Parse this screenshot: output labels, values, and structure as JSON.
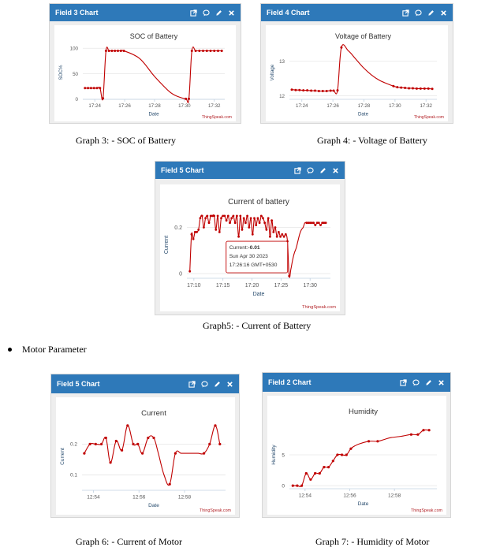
{
  "colors": {
    "header": "#2e79b9",
    "series": "#c00000"
  },
  "widgets": [
    {
      "header": "Field 3 Chart",
      "caption": "Graph 3: - SOC of Battery",
      "chart_data": {
        "type": "line",
        "title": "SOC of Battery",
        "ylabel": "SOC%",
        "xlabel": "Date",
        "credit": "ThingSpeak.com",
        "xlim": [
          23.2,
          32.7
        ],
        "ylim": [
          0,
          105
        ],
        "yticks": [
          0,
          50,
          100
        ],
        "ytick_labels": [
          "0",
          "50",
          "100"
        ],
        "xticks": [
          24,
          26,
          28,
          30,
          32
        ],
        "xtick_labels": [
          "17:24",
          "17:26",
          "17:28",
          "17:30",
          "17:32"
        ],
        "grid": true,
        "series": [
          {
            "x": [
              23.35,
              23.55,
              23.75,
              23.95,
              24.15,
              24.35,
              24.55,
              24.75,
              24.95,
              25.15,
              25.35,
              25.55,
              25.75,
              25.95,
              27.0,
              28.0,
              29.0,
              29.6,
              30.1,
              30.3,
              30.5,
              30.75,
              31.0,
              31.25,
              31.5,
              31.75,
              32.0,
              32.25,
              32.5
            ],
            "y": [
              22,
              22,
              22,
              22,
              22,
              22,
              2,
              95,
              95,
              95,
              95,
              95,
              95,
              95,
              80,
              45,
              15,
              5,
              1,
              1,
              95,
              95,
              95,
              95,
              95,
              95,
              95,
              95,
              95
            ],
            "markers": [
              true,
              true,
              true,
              true,
              true,
              true,
              true,
              true,
              true,
              true,
              true,
              true,
              true,
              true,
              false,
              false,
              false,
              false,
              true,
              true,
              true,
              true,
              true,
              true,
              true,
              true,
              true,
              true,
              true
            ]
          }
        ]
      }
    },
    {
      "header": "Field 4 Chart",
      "caption": "Graph 4: - Voltage of Battery",
      "chart_data": {
        "type": "line",
        "title": "Voltage of Battery",
        "ylabel": "Voltage",
        "xlabel": "Date",
        "credit": "ThingSpeak.com",
        "xlim": [
          23.2,
          32.7
        ],
        "ylim": [
          11.9,
          13.45
        ],
        "yticks": [
          12,
          13
        ],
        "ytick_labels": [
          "12",
          "13"
        ],
        "xticks": [
          24,
          26,
          28,
          30,
          32
        ],
        "xtick_labels": [
          "17:24",
          "17:26",
          "17:28",
          "17:30",
          "17:32"
        ],
        "grid": true,
        "series": [
          {
            "x": [
              23.35,
              23.6,
              23.85,
              24.1,
              24.35,
              24.6,
              24.85,
              25.1,
              25.35,
              25.6,
              25.85,
              26.05,
              26.3,
              26.55,
              27.0,
              27.5,
              28.0,
              28.5,
              29.0,
              29.5,
              29.9,
              30.15,
              30.4,
              30.65,
              30.9,
              31.15,
              31.4,
              31.65,
              31.9,
              32.15,
              32.4
            ],
            "y": [
              12.18,
              12.17,
              12.17,
              12.16,
              12.16,
              12.15,
              12.15,
              12.14,
              12.14,
              12.14,
              12.15,
              12.15,
              12.16,
              13.4,
              13.3,
              13.05,
              12.8,
              12.6,
              12.45,
              12.35,
              12.28,
              12.25,
              12.24,
              12.23,
              12.22,
              12.22,
              12.21,
              12.21,
              12.21,
              12.21,
              12.2
            ],
            "markers": [
              true,
              true,
              true,
              true,
              true,
              true,
              true,
              true,
              true,
              true,
              true,
              true,
              true,
              true,
              false,
              false,
              false,
              false,
              false,
              false,
              true,
              true,
              true,
              true,
              true,
              true,
              true,
              true,
              true,
              true,
              true
            ]
          }
        ]
      }
    },
    {
      "header": "Field 5 Chart",
      "caption": "Graph5: - Current of Battery",
      "tooltip": {
        "series_label": "Current",
        "value": "-0.01",
        "date": "Sun Apr 30 2023",
        "time": "17:26:16 GMT+0530",
        "x": 26.27,
        "y": -0.01
      },
      "chart_data": {
        "type": "line",
        "title": "Current of battery",
        "ylabel": "Current",
        "xlabel": "Date",
        "credit": "ThingSpeak.com",
        "xlim": [
          8.8,
          33.5
        ],
        "ylim": [
          -0.02,
          0.27
        ],
        "yticks": [
          0,
          0.2
        ],
        "ytick_labels": [
          "0",
          "0.2"
        ],
        "xticks": [
          10,
          15,
          20,
          25,
          30
        ],
        "xtick_labels": [
          "17:10",
          "17:15",
          "17:20",
          "17:25",
          "17:30"
        ],
        "grid": true,
        "series": [
          {
            "x": [
              9.3,
              9.6,
              9.9,
              10.2,
              10.5,
              10.8,
              11.1,
              11.4,
              11.7,
              12.0,
              12.3,
              12.6,
              12.9,
              13.2,
              13.5,
              13.8,
              14.1,
              14.4,
              14.7,
              15.0,
              15.3,
              15.6,
              15.9,
              16.2,
              16.5,
              16.8,
              17.1,
              17.4,
              17.7,
              18.0,
              18.3,
              18.6,
              18.9,
              19.2,
              19.5,
              19.8,
              20.1,
              20.4,
              20.7,
              21.0,
              21.3,
              21.6,
              21.9,
              22.2,
              22.5,
              22.8,
              23.1,
              23.4,
              23.7,
              24.0,
              24.3,
              24.6,
              24.9,
              25.2,
              25.5,
              25.8,
              26.1,
              26.4,
              26.7,
              27.0,
              27.3,
              27.6,
              27.9,
              28.2,
              28.5,
              28.8,
              29.1,
              29.4,
              29.7,
              30.0,
              30.3,
              30.6,
              30.9,
              31.2,
              31.5,
              31.8,
              32.1,
              32.4,
              32.7
            ],
            "y": [
              0.01,
              0.17,
              0.15,
              0.18,
              0.18,
              0.19,
              0.24,
              0.25,
              0.2,
              0.24,
              0.25,
              0.22,
              0.25,
              0.25,
              0.25,
              0.19,
              0.25,
              0.18,
              0.24,
              0.25,
              0.25,
              0.23,
              0.25,
              0.22,
              0.24,
              0.25,
              0.22,
              0.25,
              0.16,
              0.25,
              0.19,
              0.24,
              0.22,
              0.25,
              0.2,
              0.24,
              0.17,
              0.24,
              0.21,
              0.24,
              0.22,
              0.25,
              0.24,
              0.22,
              0.19,
              0.24,
              0.16,
              0.23,
              0.18,
              0.2,
              0.16,
              0.18,
              0.16,
              0.17,
              0.16,
              0.17,
              0.14,
              -0.01,
              0.02,
              0.06,
              0.09,
              0.11,
              0.14,
              0.17,
              0.19,
              0.2,
              0.22,
              0.22,
              0.22,
              0.22,
              0.22,
              0.22,
              0.21,
              0.22,
              0.22,
              0.21,
              0.22,
              0.22,
              0.22
            ],
            "markers": [
              true,
              true,
              true,
              true,
              true,
              true,
              true,
              true,
              true,
              true,
              true,
              true,
              true,
              true,
              true,
              true,
              true,
              true,
              true,
              true,
              true,
              true,
              true,
              true,
              true,
              true,
              true,
              true,
              true,
              true,
              true,
              true,
              true,
              true,
              true,
              true,
              true,
              true,
              true,
              true,
              true,
              true,
              true,
              true,
              true,
              true,
              true,
              true,
              true,
              true,
              true,
              true,
              true,
              true,
              true,
              true,
              true,
              true,
              false,
              false,
              false,
              false,
              false,
              false,
              false,
              false,
              false,
              true,
              true,
              true,
              true,
              true,
              true,
              true,
              true,
              true,
              true,
              true,
              true
            ]
          }
        ]
      }
    },
    {
      "header": "Field 5 Chart",
      "caption": "Graph 6: - Current of Motor",
      "chart_data": {
        "type": "line",
        "title": "Current",
        "ylabel": "Current",
        "xlabel": "Date",
        "credit": "ThingSpeak.com",
        "xlim": [
          53.5,
          59.8
        ],
        "ylim": [
          0.05,
          0.27
        ],
        "yticks": [
          0.1,
          0.2
        ],
        "ytick_labels": [
          "0.1",
          "0.2"
        ],
        "xticks": [
          54,
          56,
          58
        ],
        "xtick_labels": [
          "12:54",
          "12:56",
          "12:58"
        ],
        "grid": true,
        "series": [
          {
            "x": [
              53.6,
              53.85,
              54.1,
              54.35,
              54.55,
              54.75,
              55.0,
              55.25,
              55.5,
              55.75,
              55.95,
              56.15,
              56.4,
              56.65,
              56.85,
              57.1,
              57.35,
              57.6,
              57.85,
              58.1,
              58.35,
              58.6,
              58.85,
              59.1,
              59.35,
              59.55
            ],
            "y": [
              0.17,
              0.2,
              0.2,
              0.2,
              0.22,
              0.14,
              0.21,
              0.18,
              0.26,
              0.2,
              0.2,
              0.17,
              0.22,
              0.22,
              0.17,
              0.1,
              0.07,
              0.17,
              0.17,
              0.17,
              0.17,
              0.17,
              0.17,
              0.2,
              0.26,
              0.2
            ],
            "markers": [
              true,
              true,
              true,
              true,
              true,
              true,
              true,
              true,
              true,
              true,
              true,
              true,
              true,
              true,
              false,
              false,
              true,
              true,
              false,
              false,
              false,
              false,
              true,
              true,
              true,
              true
            ]
          }
        ]
      }
    },
    {
      "header": "Field 2 Chart",
      "caption": "Graph 7: - Humidity of Motor",
      "chart_data": {
        "type": "line",
        "title": "Humidity",
        "ylabel": "Humidity",
        "xlabel": "Date",
        "credit": "ThingSpeak.com",
        "xlim": [
          53.3,
          59.9
        ],
        "ylim": [
          -0.5,
          10.5
        ],
        "yticks": [
          0,
          5
        ],
        "ytick_labels": [
          "0",
          "5"
        ],
        "xticks": [
          54,
          56,
          58
        ],
        "xtick_labels": [
          "12:54",
          "12:56",
          "12:58"
        ],
        "grid": true,
        "series": [
          {
            "x": [
              53.45,
              53.65,
              53.85,
              54.05,
              54.25,
              54.45,
              54.65,
              54.85,
              55.05,
              55.25,
              55.45,
              55.65,
              55.85,
              56.05,
              56.25,
              56.45,
              56.85,
              57.25,
              57.55,
              57.85,
              58.3,
              58.75,
              59.05,
              59.3,
              59.55
            ],
            "y": [
              0,
              0,
              0,
              2,
              1,
              2,
              2,
              3,
              3,
              4,
              5,
              5,
              5,
              6,
              6.5,
              6.8,
              7.2,
              7.2,
              7.5,
              7.8,
              8,
              8.3,
              8.3,
              9,
              9
            ],
            "markers": [
              true,
              true,
              true,
              true,
              true,
              true,
              true,
              true,
              true,
              true,
              true,
              true,
              true,
              true,
              false,
              false,
              true,
              true,
              false,
              false,
              false,
              true,
              true,
              true,
              true
            ]
          }
        ]
      }
    }
  ],
  "section": {
    "label": "Motor Parameter"
  }
}
